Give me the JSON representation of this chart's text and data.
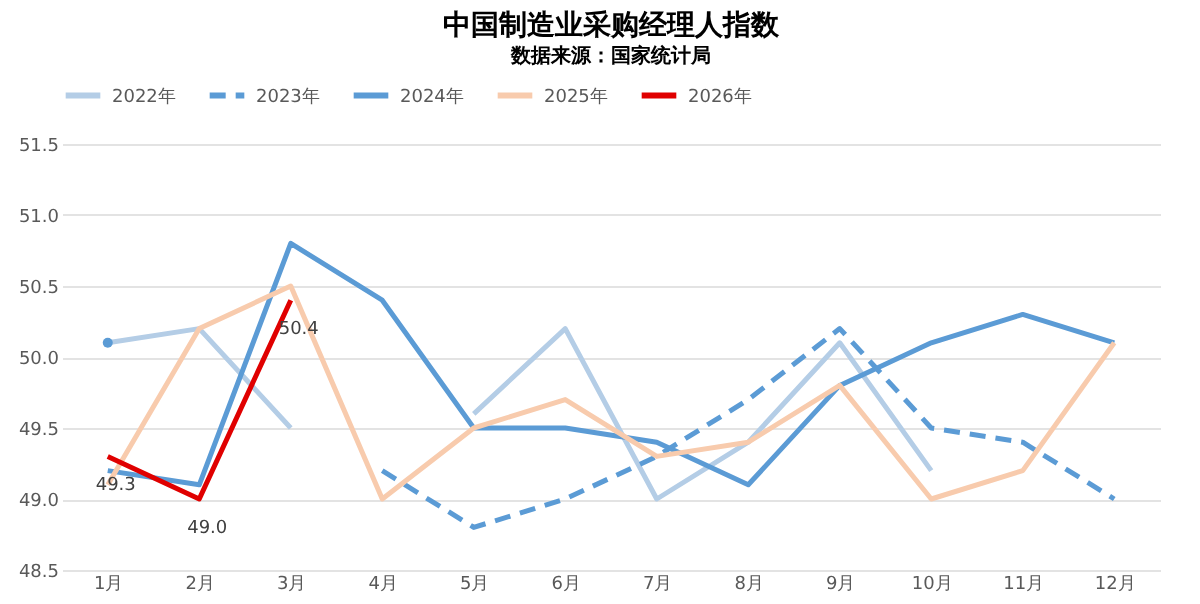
{
  "chart_data": {
    "type": "line",
    "title": "中国制造业采购经理人指数",
    "subtitle": "数据来源：国家统计局",
    "categories": [
      "1月",
      "2月",
      "3月",
      "4月",
      "5月",
      "6月",
      "7月",
      "8月",
      "9月",
      "10月",
      "11月",
      "12月"
    ],
    "series": [
      {
        "name": "2022年",
        "color": "#b4cde6",
        "line_style": "solid",
        "values": [
          50.1,
          50.2,
          49.5,
          null,
          49.6,
          50.2,
          49.0,
          49.4,
          50.1,
          49.2,
          null,
          null
        ]
      },
      {
        "name": "2023年",
        "color": "#5b9bd5",
        "line_style": "dashed",
        "values": [
          50.1,
          null,
          null,
          49.2,
          48.8,
          49.0,
          49.3,
          49.7,
          50.2,
          49.5,
          49.4,
          49.0
        ]
      },
      {
        "name": "2024年",
        "color": "#5b9bd5",
        "line_style": "solid",
        "values": [
          49.2,
          49.1,
          50.8,
          50.4,
          49.5,
          49.5,
          49.4,
          49.1,
          49.8,
          50.1,
          50.3,
          50.1
        ]
      },
      {
        "name": "2025年",
        "color": "#f8cbad",
        "line_style": "solid",
        "values": [
          49.1,
          50.2,
          50.5,
          49.0,
          49.5,
          49.7,
          49.3,
          49.4,
          49.8,
          49.0,
          49.2,
          50.1
        ]
      },
      {
        "name": "2026年",
        "color": "#e00000",
        "line_style": "solid",
        "values": [
          49.3,
          49.0,
          50.4,
          null,
          null,
          null,
          null,
          null,
          null,
          null,
          null,
          null
        ],
        "value_labels": [
          "49.3",
          "49.0",
          "50.4",
          null,
          null,
          null,
          null,
          null,
          null,
          null,
          null,
          null
        ]
      }
    ],
    "ylim": [
      48.5,
      51.5
    ],
    "yticks": [
      48.5,
      {
        "value": 49,
        "label": "49.0"
      },
      49.5,
      {
        "value": 50,
        "label": "50.0"
      },
      50.5,
      {
        "value": 51,
        "label": "51.0"
      },
      51.5
    ],
    "grid": "y",
    "legend": "top"
  }
}
